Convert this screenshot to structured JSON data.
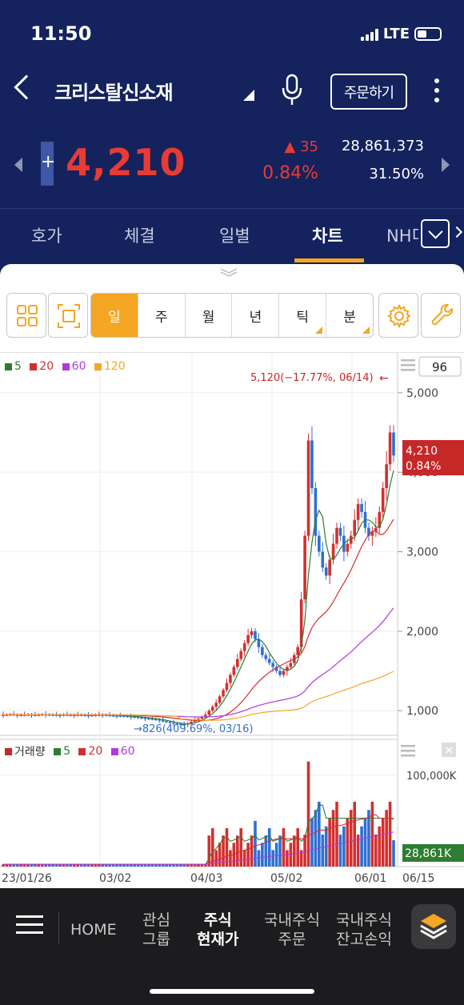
{
  "status": {
    "time": "11:50",
    "network": "LTE"
  },
  "header": {
    "stock_name": "크리스탈신소재",
    "order_button": "주문하기"
  },
  "quote": {
    "plus_symbol": "+",
    "price": "4,210",
    "change": "▲ 35",
    "change_pct": "0.84%",
    "volume": "28,861,373",
    "turnover_pct": "31.50%"
  },
  "tabs": [
    "호가",
    "체결",
    "일별",
    "차트",
    "NH디"
  ],
  "active_tab": "차트",
  "periods": [
    "일",
    "주",
    "월",
    "년",
    "틱",
    "분"
  ],
  "active_period": "일",
  "chart": {
    "count_box": "96",
    "ma_legend": [
      {
        "label": "5",
        "color": "#2e7d32"
      },
      {
        "label": "20",
        "color": "#d32f2f"
      },
      {
        "label": "60",
        "color": "#b03ae0"
      },
      {
        "label": "120",
        "color": "#f5a623"
      }
    ],
    "high_annotation": "5,120(−17.77%, 06/14)",
    "low_annotation": "826(409.69%, 03/16)",
    "price_ticks": [
      "5,000",
      "4,000",
      "3,000",
      "2,000",
      "1,000"
    ],
    "current_label_price": "4,210",
    "current_label_pct": "0.84%",
    "volume_legend": [
      {
        "label": "거래량",
        "color": "#c62828"
      },
      {
        "label": "5",
        "color": "#2e7d32"
      },
      {
        "label": "20",
        "color": "#d32f2f"
      },
      {
        "label": "60",
        "color": "#b03ae0"
      }
    ],
    "volume_tick": "100,000K",
    "volume_current": "28,861K",
    "date_ticks": [
      "23/01/26",
      "03/02",
      "04/03",
      "05/02",
      "06/01",
      "06/15"
    ]
  },
  "chart_data": {
    "type": "candlestick",
    "x_range": [
      "23/01/26",
      "06/15"
    ],
    "y_range": [
      700,
      5300
    ],
    "closes": [
      950,
      950,
      955,
      950,
      945,
      948,
      950,
      952,
      948,
      945,
      950,
      955,
      952,
      950,
      948,
      946,
      945,
      950,
      948,
      945,
      947,
      949,
      946,
      944,
      943,
      945,
      947,
      950,
      948,
      945,
      942,
      940,
      938,
      936,
      935,
      930,
      925,
      920,
      915,
      910,
      905,
      900,
      895,
      890,
      880,
      870,
      860,
      850,
      840,
      835,
      830,
      826,
      840,
      860,
      880,
      900,
      920,
      950,
      1000,
      1050,
      1100,
      1180,
      1260,
      1350,
      1450,
      1550,
      1650,
      1750,
      1850,
      1950,
      2000,
      1900,
      1800,
      1700,
      1650,
      1600,
      1550,
      1500,
      1450,
      1500,
      1550,
      1600,
      1700,
      1800,
      2400,
      3200,
      4400,
      3800,
      3200,
      3000,
      2800,
      2700,
      2900,
      3100,
      3300,
      3200,
      3000,
      3100,
      3200,
      3400,
      3600,
      3500,
      3300,
      3200,
      3250,
      3300,
      3500,
      3800,
      4100,
      4500,
      4210
    ],
    "volume_peak_k": 120000,
    "volume_current_k": 28861,
    "ma_last": {
      "5": 3900,
      "20": 3250,
      "60": 2150,
      "120": 1520
    }
  },
  "bottom_nav": [
    {
      "label": "HOME"
    },
    {
      "label": "관심\n그룹"
    },
    {
      "label": "주식\n현재가"
    },
    {
      "label": "국내주식\n주문"
    },
    {
      "label": "국내주식\n잔고손익"
    }
  ]
}
